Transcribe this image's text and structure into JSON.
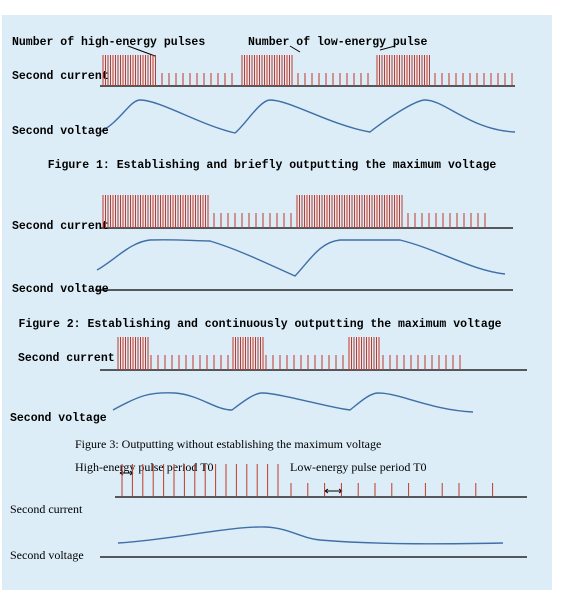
{
  "figure1": {
    "high_label": "Number of high-energy pulses",
    "low_label": "Number of low-energy pulse",
    "current_label": "Second current",
    "voltage_label": "Second voltage",
    "caption": "Figure 1:  Establishing and briefly outputting the maximum voltage"
  },
  "figure2": {
    "current_label": "Second current",
    "voltage_label": "Second voltage",
    "caption": "Figure 2:  Establishing and continuously outputting the maximum voltage"
  },
  "figure3": {
    "current_label": "Second current",
    "voltage_label": "Second voltage",
    "caption": "Figure 3: Outputting without establishing the maximum voltage"
  },
  "figure4": {
    "high_label": "High-energy pulse period T0",
    "low_label": "Low-energy pulse period T0",
    "current_label": "Second current",
    "voltage_label": "Second voltage"
  }
}
